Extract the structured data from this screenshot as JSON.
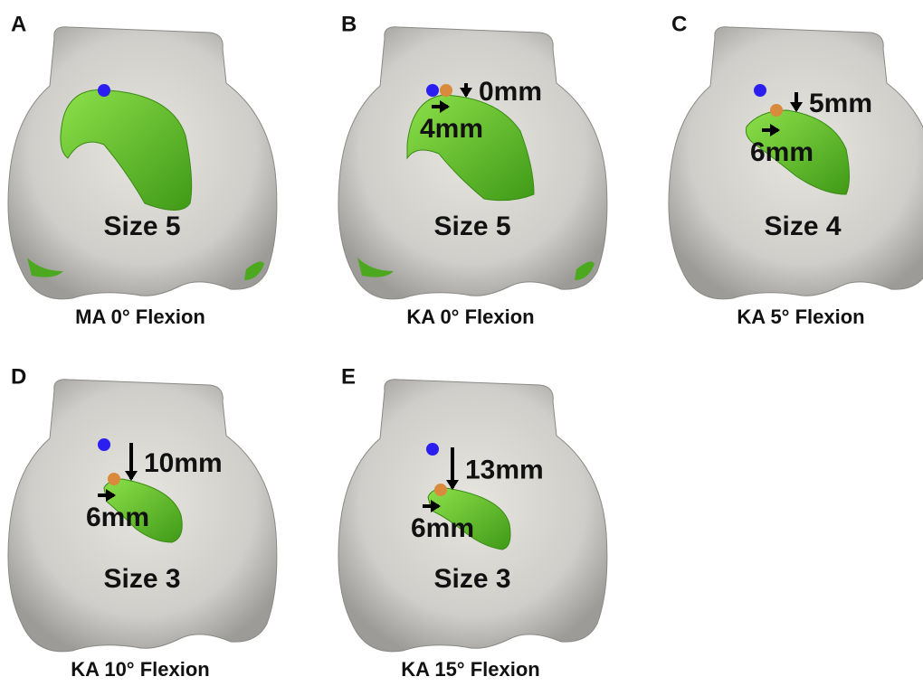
{
  "panels": [
    {
      "letter": "A",
      "size": "Size 5",
      "caption": "MA 0° Flexion"
    },
    {
      "letter": "B",
      "size": "Size 5",
      "caption": "KA 0° Flexion",
      "down": "0mm",
      "right": "4mm"
    },
    {
      "letter": "C",
      "size": "Size 4",
      "caption": "KA 5° Flexion",
      "down": "5mm",
      "right": "6mm"
    },
    {
      "letter": "D",
      "size": "Size 3",
      "caption": "KA 10° Flexion",
      "down": "10mm",
      "right": "6mm"
    },
    {
      "letter": "E",
      "size": "Size 3",
      "caption": "KA 15° Flexion",
      "down": "13mm",
      "right": "6mm"
    }
  ]
}
